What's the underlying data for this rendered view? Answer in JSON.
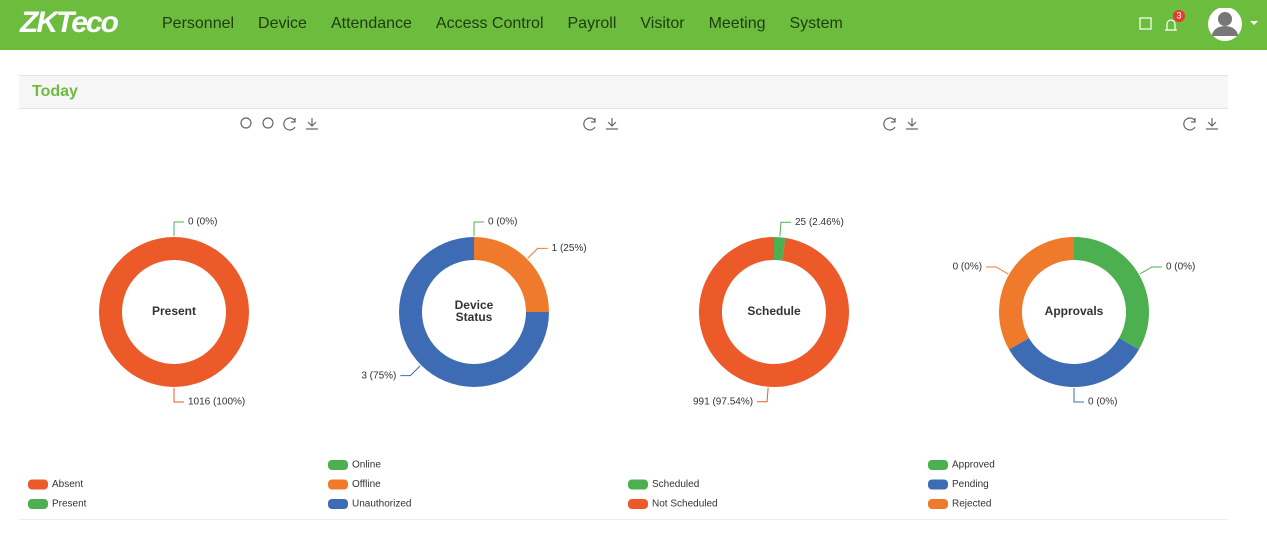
{
  "header": {
    "logo": "ZKTeco",
    "nav": [
      "Personnel",
      "Device",
      "Attendance",
      "Access Control",
      "Payroll",
      "Visitor",
      "Meeting",
      "System"
    ],
    "notification_count": 3
  },
  "section_title": "Today",
  "chart_data": [
    {
      "type": "pie",
      "title": "Present",
      "categories": [
        "Absent",
        "Present"
      ],
      "values": [
        1016,
        0
      ],
      "value_labels": [
        "1016 (100%)",
        "0 (0%)"
      ],
      "colors": [
        "#ec5a2a",
        "#4cb050"
      ]
    },
    {
      "type": "pie",
      "title": "Device Status",
      "categories": [
        "Online",
        "Offline",
        "Unauthorized"
      ],
      "values": [
        0,
        1,
        3
      ],
      "value_labels": [
        "0 (0%)",
        "1 (25%)",
        "3 (75%)"
      ],
      "colors": [
        "#4cb050",
        "#f07a2c",
        "#3d6cb5"
      ]
    },
    {
      "type": "pie",
      "title": "Schedule",
      "categories": [
        "Scheduled",
        "Not Scheduled"
      ],
      "values": [
        25,
        991
      ],
      "value_labels": [
        "25 (2.46%)",
        "991 (97.54%)"
      ],
      "colors": [
        "#4cb050",
        "#ec5a2a"
      ]
    },
    {
      "type": "pie",
      "title": "Approvals",
      "categories": [
        "Approved",
        "Pending",
        "Rejected"
      ],
      "values": [
        0,
        0,
        0
      ],
      "value_labels": [
        "0 (0%)",
        "0 (0%)",
        "0 (0%)"
      ],
      "colors": [
        "#4cb050",
        "#3d6cb5",
        "#f07a2c"
      ]
    }
  ]
}
